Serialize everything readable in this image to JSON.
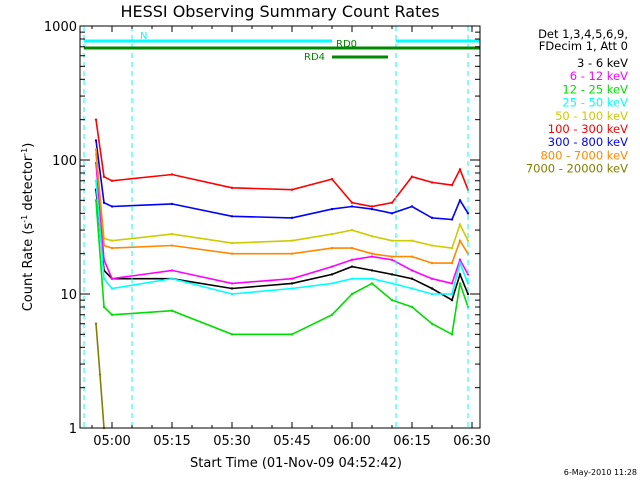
{
  "chart_data": {
    "type": "line",
    "title": "HESSI Observing Summary Count Rates",
    "xlabel": "Start Time (01-Nov-09 04:52:42)",
    "ylabel_prefix": "Count Rate (s",
    "ylabel_sup1": "-1",
    "ylabel_mid": " detector",
    "ylabel_sup2": "-1",
    "ylabel_suffix": ")",
    "y_scale": "log",
    "ylim": [
      1,
      1000
    ],
    "xlim": [
      "04:52:42",
      "06:32:42"
    ],
    "x_ticks": [
      "05:00",
      "05:15",
      "05:30",
      "05:45",
      "06:00",
      "06:15",
      "06:30"
    ],
    "y_ticks": [
      "1",
      "10",
      "100",
      "1000"
    ],
    "legend_header": [
      "Det 1,3,4,5,6,9,",
      "FDecim 1, Att 0"
    ],
    "legend_position": "right",
    "series": [
      {
        "name": "3 - 6 keV",
        "color": "#000000",
        "x": [
          "04:56",
          "04:58",
          "05:00",
          "05:15",
          "05:30",
          "05:45",
          "05:55",
          "06:00",
          "06:05",
          "06:10",
          "06:15",
          "06:20",
          "06:25",
          "06:27",
          "06:29"
        ],
        "values": [
          60,
          15,
          13,
          13,
          11,
          12,
          14,
          16,
          15,
          14,
          13,
          11,
          9,
          14,
          10
        ]
      },
      {
        "name": "6 - 12 keV",
        "color": "#ff00ff",
        "x": [
          "04:56",
          "04:58",
          "05:00",
          "05:15",
          "05:30",
          "05:45",
          "05:55",
          "06:00",
          "06:05",
          "06:10",
          "06:15",
          "06:20",
          "06:25",
          "06:27",
          "06:29"
        ],
        "values": [
          95,
          18,
          13,
          15,
          12,
          13,
          16,
          18,
          19,
          18,
          15,
          13,
          12,
          18,
          14
        ]
      },
      {
        "name": "12 - 25 keV",
        "color": "#00dd00",
        "x": [
          "04:56",
          "04:58",
          "05:00",
          "05:15",
          "05:30",
          "05:45",
          "05:55",
          "06:00",
          "06:05",
          "06:10",
          "06:15",
          "06:20",
          "06:25",
          "06:27",
          "06:29"
        ],
        "values": [
          50,
          8,
          7,
          7.5,
          5,
          5,
          7,
          10,
          12,
          9,
          8,
          6,
          5,
          12,
          8
        ]
      },
      {
        "name": "25 - 50 keV",
        "color": "#00ffff",
        "x": [
          "04:56",
          "04:58",
          "05:00",
          "05:15",
          "05:30",
          "05:45",
          "05:55",
          "06:00",
          "06:05",
          "06:10",
          "06:15",
          "06:20",
          "06:25",
          "06:27",
          "06:29"
        ],
        "values": [
          70,
          13,
          11,
          13,
          10,
          11,
          12,
          13,
          13,
          12,
          11,
          10,
          10,
          17,
          12
        ]
      },
      {
        "name": "50 - 100 keV",
        "color": "#cccc00",
        "x": [
          "04:56",
          "04:58",
          "05:00",
          "05:15",
          "05:30",
          "05:45",
          "05:55",
          "06:00",
          "06:05",
          "06:10",
          "06:15",
          "06:20",
          "06:25",
          "06:27",
          "06:29"
        ],
        "values": [
          110,
          26,
          25,
          28,
          24,
          25,
          28,
          30,
          27,
          25,
          25,
          23,
          22,
          33,
          25
        ]
      },
      {
        "name": "100 - 300 keV",
        "color": "#ff0000",
        "x": [
          "04:56",
          "04:58",
          "05:00",
          "05:15",
          "05:30",
          "05:45",
          "05:55",
          "06:00",
          "06:05",
          "06:10",
          "06:15",
          "06:20",
          "06:25",
          "06:27",
          "06:29"
        ],
        "values": [
          200,
          75,
          70,
          78,
          62,
          60,
          72,
          48,
          45,
          48,
          75,
          68,
          65,
          85,
          60
        ]
      },
      {
        "name": "300 - 800 keV",
        "color": "#0000ff",
        "x": [
          "04:56",
          "04:58",
          "05:00",
          "05:15",
          "05:30",
          "05:45",
          "05:55",
          "06:00",
          "06:05",
          "06:10",
          "06:15",
          "06:20",
          "06:25",
          "06:27",
          "06:29"
        ],
        "values": [
          140,
          48,
          45,
          47,
          38,
          37,
          43,
          45,
          43,
          40,
          45,
          37,
          36,
          50,
          40
        ]
      },
      {
        "name": "800 - 7000 keV",
        "color": "#ff8800",
        "x": [
          "04:56",
          "04:58",
          "05:00",
          "05:15",
          "05:30",
          "05:45",
          "05:55",
          "06:00",
          "06:05",
          "06:10",
          "06:15",
          "06:20",
          "06:25",
          "06:27",
          "06:29"
        ],
        "values": [
          120,
          23,
          22,
          23,
          20,
          20,
          22,
          22,
          20,
          19,
          19,
          17,
          17,
          25,
          20
        ]
      },
      {
        "name": "7000 - 20000 keV",
        "color": "#808000",
        "x": [
          "04:56",
          "04:57",
          "04:58"
        ],
        "values": [
          6,
          2.5,
          1
        ]
      }
    ],
    "vertical_lines": [
      "04:53",
      "05:05",
      "06:11",
      "06:29"
    ],
    "annotation_bars": [
      {
        "label": "N",
        "color": "#00ffff",
        "start": "04:53",
        "end": "06:32",
        "gap_start": "05:55",
        "gap_end": "06:11"
      },
      {
        "label": "RD0",
        "color": "#008800",
        "start": "04:53",
        "end": "06:32"
      },
      {
        "label": "RD4",
        "color": "#008800",
        "start": "05:55",
        "end": "06:09"
      }
    ]
  },
  "footer": {
    "timestamp": "6-May-2010 11:28"
  }
}
